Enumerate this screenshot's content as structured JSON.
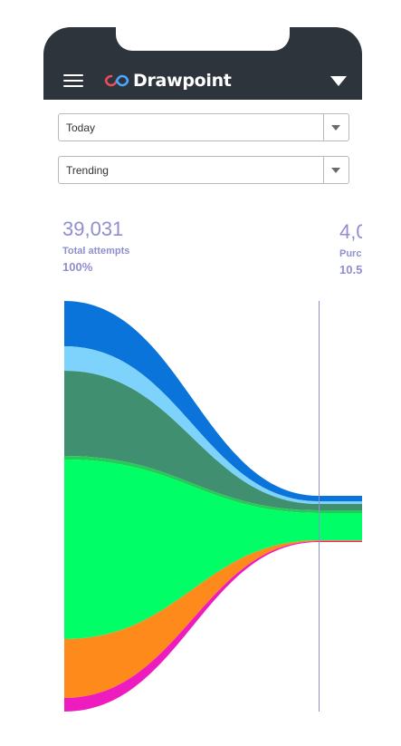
{
  "app": {
    "name": "Drawpoint"
  },
  "header": {
    "menu_icon": "hamburger-icon",
    "logo_icon": "infinity-logo-icon",
    "account_caret_icon": "caret-down-icon"
  },
  "filters": {
    "period": {
      "selected": "Today"
    },
    "sort": {
      "selected": "Trending"
    }
  },
  "stages": [
    {
      "value": "39,031",
      "label": "Total attempts",
      "percent": "100%"
    },
    {
      "value": "4,0",
      "label": "Purc",
      "percent": "10.5"
    }
  ],
  "colors": {
    "header_bg": "#2e343c",
    "stat_text": "#8f8ed0",
    "divider": "#8f8ed0",
    "bands": [
      "#0a74da",
      "#7dd3fb",
      "#3f8f70",
      "#00ff66",
      "#ff8a1c",
      "#ee1bbf"
    ]
  }
}
